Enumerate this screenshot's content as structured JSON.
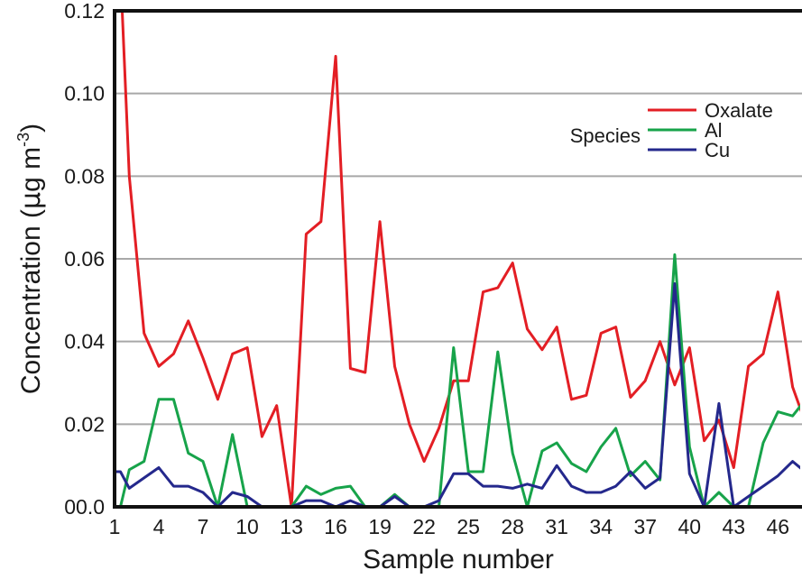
{
  "chart_data": {
    "type": "line",
    "xlabel": "Sample number",
    "ylabel": {
      "main": "Concentration (",
      "mu": "μ",
      "unit": "g m",
      "sup": "-3",
      "close": ")"
    },
    "xlim": [
      1,
      48
    ],
    "ylim": [
      0,
      0.12
    ],
    "x_ticks": [
      1,
      4,
      7,
      10,
      13,
      16,
      19,
      22,
      25,
      28,
      31,
      34,
      37,
      40,
      43,
      46
    ],
    "x_tick_labels": [
      "1",
      "4",
      "7",
      "10",
      "13",
      "16",
      "19",
      "22",
      "25",
      "28",
      "31",
      "34",
      "37",
      "40",
      "43",
      "46"
    ],
    "y_ticks": [
      0,
      0.02,
      0.04,
      0.06,
      0.08,
      0.1,
      0.12
    ],
    "y_tick_labels": [
      "00.0",
      "0.02",
      "0.04",
      "0.06",
      "0.08",
      "0.10",
      "0.12"
    ],
    "grid": "horizontal",
    "legend": {
      "title": "Species",
      "placement": "top-right"
    },
    "x": [
      1,
      1.4,
      2,
      3,
      4,
      5,
      6,
      7,
      8,
      9,
      10,
      11,
      12,
      13,
      14,
      15,
      16,
      17,
      18,
      19,
      20,
      21,
      22,
      23,
      24,
      25,
      26,
      27,
      28,
      29,
      30,
      31,
      32,
      33,
      34,
      35,
      36,
      37,
      38,
      39,
      40,
      41,
      42,
      43,
      44,
      45,
      46,
      47,
      48
    ],
    "series": [
      {
        "name": "Oxalate",
        "color": "#e31e24",
        "values": [
          0.13,
          0.13,
          0.08,
          0.042,
          0.034,
          0.037,
          0.045,
          0.036,
          0.026,
          0.037,
          0.0385,
          0.017,
          0.0245,
          0.0,
          0.066,
          0.069,
          0.109,
          0.0335,
          0.0325,
          0.069,
          0.034,
          0.02,
          0.011,
          0.019,
          0.0305,
          0.0305,
          0.052,
          0.053,
          0.059,
          0.043,
          0.038,
          0.0435,
          0.026,
          0.027,
          0.042,
          0.0435,
          0.0265,
          0.0305,
          0.04,
          0.0295,
          0.0385,
          0.016,
          0.021,
          0.0095,
          0.034,
          0.037,
          0.052,
          0.029,
          0.019
        ]
      },
      {
        "name": "Al",
        "color": "#17a34a",
        "values": [
          0.0,
          0.0,
          0.009,
          0.011,
          0.026,
          0.026,
          0.013,
          0.011,
          0.0,
          0.0175,
          0.0,
          0.0,
          0.0,
          0.0,
          0.005,
          0.003,
          0.0045,
          0.005,
          0.0,
          0.0,
          0.003,
          0.0,
          0.0,
          0.0,
          0.0385,
          0.0085,
          0.0085,
          0.0375,
          0.013,
          0.0,
          0.0135,
          0.0155,
          0.0105,
          0.0085,
          0.0145,
          0.019,
          0.0075,
          0.011,
          0.0065,
          0.061,
          0.0145,
          0.0,
          0.0035,
          0.0,
          0.0,
          0.0155,
          0.023,
          0.022,
          0.0265
        ]
      },
      {
        "name": "Cu",
        "color": "#24288c",
        "values": [
          0.0085,
          0.0085,
          0.0045,
          0.007,
          0.0095,
          0.005,
          0.005,
          0.0035,
          0.0,
          0.0035,
          0.0025,
          0.0,
          0.0,
          0.0,
          0.0015,
          0.0015,
          0.0,
          0.0015,
          0.0,
          0.0,
          0.0025,
          0.0,
          0.0,
          0.0015,
          0.008,
          0.008,
          0.005,
          0.005,
          0.0045,
          0.0055,
          0.0045,
          0.01,
          0.005,
          0.0035,
          0.0035,
          0.005,
          0.0085,
          0.0045,
          0.007,
          0.054,
          0.008,
          0.0,
          0.025,
          0.0,
          0.0025,
          0.005,
          0.0075,
          0.011,
          0.008
        ]
      }
    ]
  }
}
